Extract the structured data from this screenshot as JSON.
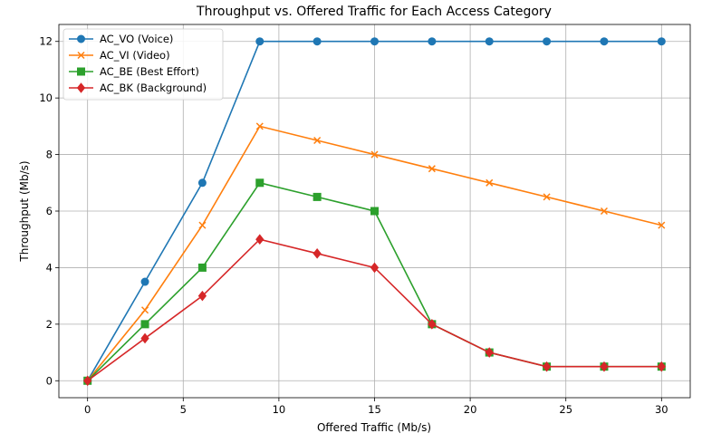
{
  "chart_data": {
    "type": "line",
    "title": "Throughput vs. Offered Traffic for Each Access Category",
    "xlabel": "Offered Traffic (Mb/s)",
    "ylabel": "Throughput (Mb/s)",
    "xlim": [
      -1.5,
      31.5
    ],
    "ylim": [
      -0.6,
      12.6
    ],
    "xticks": [
      0,
      5,
      10,
      15,
      20,
      25,
      30
    ],
    "yticks": [
      0,
      2,
      4,
      6,
      8,
      10,
      12
    ],
    "grid": true,
    "legend_position": "top-left",
    "x": [
      0,
      3,
      6,
      9,
      12,
      15,
      18,
      21,
      24,
      27,
      30
    ],
    "series": [
      {
        "name": "AC_VO (Voice)",
        "color": "#1f77b4",
        "marker": "circle",
        "values": [
          0,
          3.5,
          7,
          12,
          12,
          12,
          12,
          12,
          12,
          12,
          12
        ]
      },
      {
        "name": "AC_VI (Video)",
        "color": "#ff7f0e",
        "marker": "x",
        "values": [
          0,
          2.5,
          5.5,
          9,
          8.5,
          8,
          7.5,
          7,
          6.5,
          6,
          5.5
        ]
      },
      {
        "name": "AC_BE (Best Effort)",
        "color": "#2ca02c",
        "marker": "square",
        "values": [
          0,
          2,
          4,
          7,
          6.5,
          6,
          2,
          1,
          0.5,
          0.5,
          0.5
        ]
      },
      {
        "name": "AC_BK (Background)",
        "color": "#d62728",
        "marker": "diamond",
        "values": [
          0,
          1.5,
          3,
          5,
          4.5,
          4,
          2,
          1,
          0.5,
          0.5,
          0.5
        ]
      }
    ]
  }
}
